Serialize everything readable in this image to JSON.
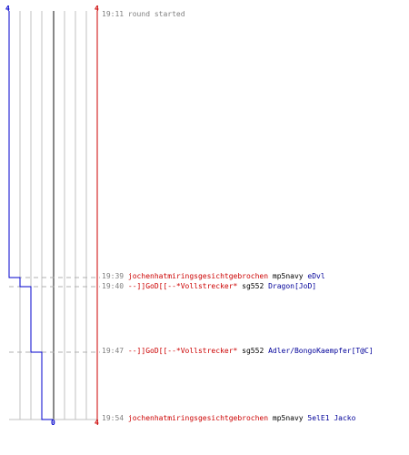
{
  "score": {
    "blue_start": "4",
    "red_start": "4",
    "blue_end": "0",
    "red_end": "4"
  },
  "colors": {
    "blue_team": "#0000cc",
    "red_team": "#cc0000",
    "grid": "#c0c0c0",
    "center_line": "#606060",
    "dashed_connector": "#b0b0b0",
    "time": "#808080",
    "victim": "#000099"
  },
  "events": [
    {
      "time": "19:11",
      "text": "round started"
    },
    {
      "time": "19:39",
      "killer": "jochenhatmiringsgesichtgebrochen",
      "weapon": "mp5navy",
      "victim": "eDvl",
      "blue_remaining": 3
    },
    {
      "time": "19:40",
      "killer": "--]]GoD[[--*Vollstrecker*",
      "weapon": "sg552",
      "victim": "Dragon[JoD]",
      "blue_remaining": 2
    },
    {
      "time": "19:47",
      "killer": "--]]GoD[[--*Vollstrecker*",
      "weapon": "sg552",
      "victim": "Adler/BongoKaempfer[T@C]",
      "blue_remaining": 1
    },
    {
      "time": "19:54",
      "killer": "jochenhatmiringsgesichtgebrochen",
      "weapon": "mp5navy",
      "victim": "5elE1 Jacko",
      "blue_remaining": 0
    }
  ]
}
